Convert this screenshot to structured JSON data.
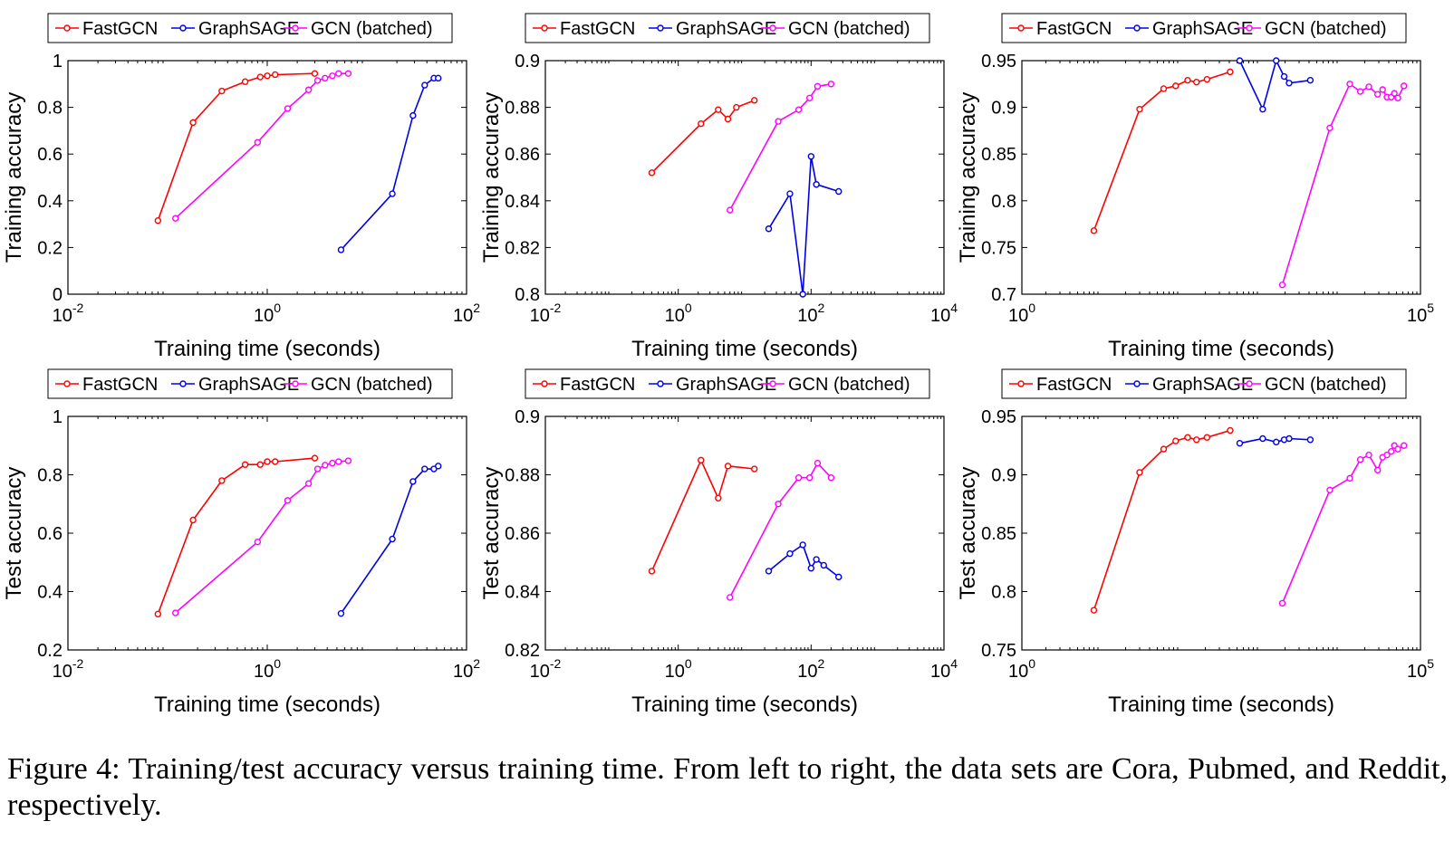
{
  "colors": {
    "FastGCN": "#ff0000",
    "GraphSAGE": "#0000e6",
    "GCN (batched)": "#ff00ff"
  },
  "caption": "Figure 4: Training/test accuracy versus training time. From left to right, the data sets are Cora, Pubmed, and Reddit, respectively.",
  "chart_data": [
    {
      "type": "line",
      "dataset": "Cora",
      "xscale": "log",
      "xlabel": "Training time (seconds)",
      "ylabel": "Training accuracy",
      "xlim": [
        0.01,
        100
      ],
      "ylim": [
        0,
        1
      ],
      "xticks": [
        {
          "v": 0.01,
          "base": "10",
          "exp": "-2"
        },
        {
          "v": 1,
          "base": "10",
          "exp": "0"
        },
        {
          "v": 100,
          "base": "10",
          "exp": "2"
        }
      ],
      "yticks": [
        {
          "v": 0,
          "label": "0"
        },
        {
          "v": 0.2,
          "label": "0.2"
        },
        {
          "v": 0.4,
          "label": "0.4"
        },
        {
          "v": 0.6,
          "label": "0.6"
        },
        {
          "v": 0.8,
          "label": "0.8"
        },
        {
          "v": 1,
          "label": "1"
        }
      ],
      "legend": [
        "FastGCN",
        "GraphSAGE",
        "GCN (batched)"
      ],
      "series": [
        {
          "name": "FastGCN",
          "x": [
            0.08,
            0.18,
            0.35,
            0.6,
            0.85,
            1.0,
            1.2,
            3.0
          ],
          "y": [
            0.315,
            0.735,
            0.87,
            0.91,
            0.93,
            0.935,
            0.94,
            0.945
          ]
        },
        {
          "name": "GraphSAGE",
          "x": [
            5.5,
            18,
            29,
            38,
            47,
            52
          ],
          "y": [
            0.19,
            0.43,
            0.765,
            0.895,
            0.925,
            0.925
          ]
        },
        {
          "name": "GCN (batched)",
          "x": [
            0.12,
            0.8,
            1.6,
            2.6,
            3.2,
            3.8,
            4.5,
            5.2,
            6.5
          ],
          "y": [
            0.325,
            0.65,
            0.795,
            0.875,
            0.915,
            0.925,
            0.935,
            0.945,
            0.945
          ]
        }
      ]
    },
    {
      "type": "line",
      "dataset": "Pubmed",
      "xscale": "log",
      "xlabel": "Training time (seconds)",
      "ylabel": "Training accuracy",
      "xlim": [
        0.01,
        10000
      ],
      "ylim": [
        0.8,
        0.9
      ],
      "xticks": [
        {
          "v": 0.01,
          "base": "10",
          "exp": "-2"
        },
        {
          "v": 1,
          "base": "10",
          "exp": "0"
        },
        {
          "v": 100,
          "base": "10",
          "exp": "2"
        },
        {
          "v": 10000,
          "base": "10",
          "exp": "4"
        }
      ],
      "yticks": [
        {
          "v": 0.8,
          "label": "0.8"
        },
        {
          "v": 0.82,
          "label": "0.82"
        },
        {
          "v": 0.84,
          "label": "0.84"
        },
        {
          "v": 0.86,
          "label": "0.86"
        },
        {
          "v": 0.88,
          "label": "0.88"
        },
        {
          "v": 0.9,
          "label": "0.9"
        }
      ],
      "legend": [
        "FastGCN",
        "GraphSAGE",
        "GCN (batched)"
      ],
      "series": [
        {
          "name": "FastGCN",
          "x": [
            0.4,
            2.2,
            4.0,
            5.6,
            7.5,
            14
          ],
          "y": [
            0.852,
            0.873,
            0.879,
            0.875,
            0.88,
            0.883
          ]
        },
        {
          "name": "GraphSAGE",
          "x": [
            23,
            48,
            75,
            100,
            120,
            260
          ],
          "y": [
            0.828,
            0.843,
            0.8,
            0.859,
            0.847,
            0.844
          ]
        },
        {
          "name": "GCN (batched)",
          "x": [
            6,
            32,
            65,
            95,
            125,
            200
          ],
          "y": [
            0.836,
            0.874,
            0.879,
            0.884,
            0.889,
            0.89
          ]
        }
      ]
    },
    {
      "type": "line",
      "dataset": "Reddit",
      "xscale": "log",
      "xlabel": "Training time (seconds)",
      "ylabel": "Training accuracy",
      "xlim": [
        1,
        100000
      ],
      "ylim": [
        0.7,
        0.95
      ],
      "xticks": [
        {
          "v": 1,
          "base": "10",
          "exp": "0"
        },
        {
          "v": 100000,
          "base": "10",
          "exp": "5"
        }
      ],
      "yticks": [
        {
          "v": 0.7,
          "label": "0.7"
        },
        {
          "v": 0.75,
          "label": "0.75"
        },
        {
          "v": 0.8,
          "label": "0.8"
        },
        {
          "v": 0.85,
          "label": "0.85"
        },
        {
          "v": 0.9,
          "label": "0.9"
        },
        {
          "v": 0.95,
          "label": "0.95"
        }
      ],
      "legend": [
        "FastGCN",
        "GraphSAGE",
        "GCN (batched)"
      ],
      "series": [
        {
          "name": "FastGCN",
          "x": [
            8,
            30,
            60,
            85,
            120,
            155,
            210,
            410
          ],
          "y": [
            0.768,
            0.898,
            0.92,
            0.923,
            0.929,
            0.927,
            0.93,
            0.938
          ]
        },
        {
          "name": "GraphSAGE",
          "x": [
            540,
            1050,
            1550,
            1950,
            2250,
            4150
          ],
          "y": [
            0.95,
            0.898,
            0.95,
            0.933,
            0.926,
            0.929
          ]
        },
        {
          "name": "GCN (batched)",
          "x": [
            1850,
            7300,
            13000,
            17600,
            22500,
            29000,
            33500,
            38000,
            43000,
            47000,
            52000,
            62000
          ],
          "y": [
            0.71,
            0.878,
            0.925,
            0.917,
            0.922,
            0.914,
            0.919,
            0.911,
            0.911,
            0.915,
            0.91,
            0.923
          ]
        }
      ]
    },
    {
      "type": "line",
      "dataset": "Cora",
      "xscale": "log",
      "xlabel": "Training time (seconds)",
      "ylabel": "Test accuracy",
      "xlim": [
        0.01,
        100
      ],
      "ylim": [
        0.2,
        1
      ],
      "xticks": [
        {
          "v": 0.01,
          "base": "10",
          "exp": "-2"
        },
        {
          "v": 1,
          "base": "10",
          "exp": "0"
        },
        {
          "v": 100,
          "base": "10",
          "exp": "2"
        }
      ],
      "yticks": [
        {
          "v": 0.2,
          "label": "0.2"
        },
        {
          "v": 0.4,
          "label": "0.4"
        },
        {
          "v": 0.6,
          "label": "0.6"
        },
        {
          "v": 0.8,
          "label": "0.8"
        },
        {
          "v": 1,
          "label": "1"
        }
      ],
      "legend": [
        "FastGCN",
        "GraphSAGE",
        "GCN (batched)"
      ],
      "series": [
        {
          "name": "FastGCN",
          "x": [
            0.08,
            0.18,
            0.35,
            0.6,
            0.85,
            1.0,
            1.2,
            3.0
          ],
          "y": [
            0.323,
            0.645,
            0.78,
            0.835,
            0.835,
            0.845,
            0.845,
            0.857
          ]
        },
        {
          "name": "GraphSAGE",
          "x": [
            5.5,
            18,
            29,
            38,
            47,
            52
          ],
          "y": [
            0.325,
            0.58,
            0.777,
            0.82,
            0.82,
            0.83
          ]
        },
        {
          "name": "GCN (batched)",
          "x": [
            0.12,
            0.8,
            1.6,
            2.6,
            3.2,
            3.8,
            4.5,
            5.2,
            6.5
          ],
          "y": [
            0.327,
            0.57,
            0.712,
            0.77,
            0.82,
            0.833,
            0.84,
            0.845,
            0.848
          ]
        }
      ]
    },
    {
      "type": "line",
      "dataset": "Pubmed",
      "xscale": "log",
      "xlabel": "Training time (seconds)",
      "ylabel": "Test accuracy",
      "xlim": [
        0.01,
        10000
      ],
      "ylim": [
        0.82,
        0.9
      ],
      "xticks": [
        {
          "v": 0.01,
          "base": "10",
          "exp": "-2"
        },
        {
          "v": 1,
          "base": "10",
          "exp": "0"
        },
        {
          "v": 100,
          "base": "10",
          "exp": "2"
        },
        {
          "v": 10000,
          "base": "10",
          "exp": "4"
        }
      ],
      "yticks": [
        {
          "v": 0.82,
          "label": "0.82"
        },
        {
          "v": 0.84,
          "label": "0.84"
        },
        {
          "v": 0.86,
          "label": "0.86"
        },
        {
          "v": 0.88,
          "label": "0.88"
        },
        {
          "v": 0.9,
          "label": "0.9"
        }
      ],
      "legend": [
        "FastGCN",
        "GraphSAGE",
        "GCN (batched)"
      ],
      "series": [
        {
          "name": "FastGCN",
          "x": [
            0.4,
            2.2,
            4.0,
            5.6,
            14
          ],
          "y": [
            0.847,
            0.885,
            0.872,
            0.883,
            0.882
          ]
        },
        {
          "name": "GraphSAGE",
          "x": [
            23,
            48,
            75,
            100,
            120,
            155,
            260
          ],
          "y": [
            0.847,
            0.853,
            0.856,
            0.848,
            0.851,
            0.849,
            0.845
          ]
        },
        {
          "name": "GCN (batched)",
          "x": [
            6,
            32,
            65,
            95,
            125,
            200
          ],
          "y": [
            0.838,
            0.87,
            0.879,
            0.879,
            0.884,
            0.879
          ]
        }
      ]
    },
    {
      "type": "line",
      "dataset": "Reddit",
      "xscale": "log",
      "xlabel": "Training time (seconds)",
      "ylabel": "Test accuracy",
      "xlim": [
        1,
        100000
      ],
      "ylim": [
        0.75,
        0.95
      ],
      "xticks": [
        {
          "v": 1,
          "base": "10",
          "exp": "0"
        },
        {
          "v": 100000,
          "base": "10",
          "exp": "5"
        }
      ],
      "yticks": [
        {
          "v": 0.75,
          "label": "0.75"
        },
        {
          "v": 0.8,
          "label": "0.8"
        },
        {
          "v": 0.85,
          "label": "0.85"
        },
        {
          "v": 0.9,
          "label": "0.9"
        },
        {
          "v": 0.95,
          "label": "0.95"
        }
      ],
      "legend": [
        "FastGCN",
        "GraphSAGE",
        "GCN (batched)"
      ],
      "series": [
        {
          "name": "FastGCN",
          "x": [
            8,
            30,
            60,
            85,
            120,
            155,
            210,
            410
          ],
          "y": [
            0.784,
            0.902,
            0.922,
            0.929,
            0.932,
            0.93,
            0.932,
            0.938
          ]
        },
        {
          "name": "GraphSAGE",
          "x": [
            540,
            1050,
            1550,
            1950,
            2250,
            4150
          ],
          "y": [
            0.927,
            0.931,
            0.928,
            0.93,
            0.931,
            0.93
          ]
        },
        {
          "name": "GCN (batched)",
          "x": [
            1850,
            7300,
            13000,
            17600,
            22500,
            29000,
            33500,
            38000,
            43000,
            47000,
            52000,
            62000
          ],
          "y": [
            0.79,
            0.887,
            0.897,
            0.913,
            0.917,
            0.904,
            0.915,
            0.917,
            0.92,
            0.925,
            0.922,
            0.925
          ]
        }
      ]
    }
  ]
}
